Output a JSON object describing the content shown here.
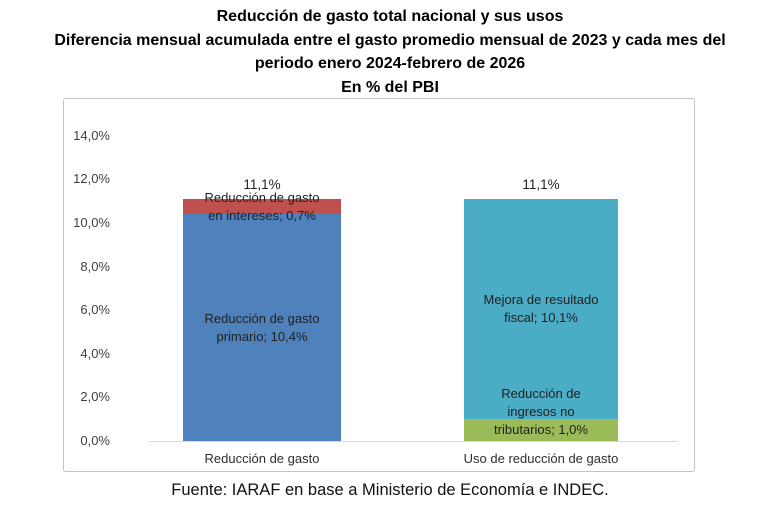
{
  "title": {
    "line1": "Reducción de gasto total nacional y sus usos",
    "line2": "Diferencia mensual acumulada entre el gasto promedio mensual de 2023 y cada mes del",
    "line3": "periodo enero 2024-febrero de 2026",
    "line4": "En % del PBI"
  },
  "footer": {
    "text": "Fuente: IARAF en base a Ministerio de Economía e INDEC."
  },
  "colors": {
    "primary_blue": "#4F81BD",
    "interest_red": "#C0504D",
    "fiscal_teal": "#4BACC6",
    "income_green": "#9BBB59",
    "axis_line": "#d9d9d9",
    "chart_border": "#c3c3c3"
  },
  "chart_data": {
    "type": "bar",
    "subtype": "stacked",
    "title": "Reducción de gasto total nacional y sus usos — Diferencia mensual acumulada entre el gasto promedio mensual de 2023 y cada mes del periodo enero 2024-febrero de 2026 — En % del PBI",
    "xlabel": "",
    "ylabel": "% del PBI",
    "ylim": [
      0,
      14
    ],
    "grid": false,
    "legend": false,
    "y_axis": {
      "min": 0,
      "max": 14,
      "step": 2,
      "tick_labels": [
        "0,0%",
        "2,0%",
        "4,0%",
        "6,0%",
        "8,0%",
        "10,0%",
        "12,0%",
        "14,0%"
      ]
    },
    "categories": [
      "Reducción de gasto",
      "Uso de reducción de gasto"
    ],
    "bars": [
      {
        "category": "Reducción de gasto",
        "total": 11.1,
        "total_label": "11,1%",
        "segments": [
          {
            "name": "reduccion-gasto-primario",
            "label": "Reducción de gasto\nprimario; 10,4%",
            "value": 10.4,
            "color": "#4F81BD"
          },
          {
            "name": "reduccion-gasto-intereses",
            "label": "Reducción de gasto\nen intereses; 0,7%",
            "value": 0.7,
            "color": "#C0504D"
          }
        ]
      },
      {
        "category": "Uso de reducción de gasto",
        "total": 11.1,
        "total_label": "11,1%",
        "segments": [
          {
            "name": "reduccion-ingresos-no-tributarios",
            "label": "Reducción de\ningresos no\ntributarios; 1,0%",
            "value": 1.0,
            "color": "#9BBB59"
          },
          {
            "name": "mejora-resultado-fiscal",
            "label": "Mejora de resultado\nfiscal; 10,1%",
            "value": 10.1,
            "color": "#4BACC6"
          }
        ]
      }
    ]
  }
}
